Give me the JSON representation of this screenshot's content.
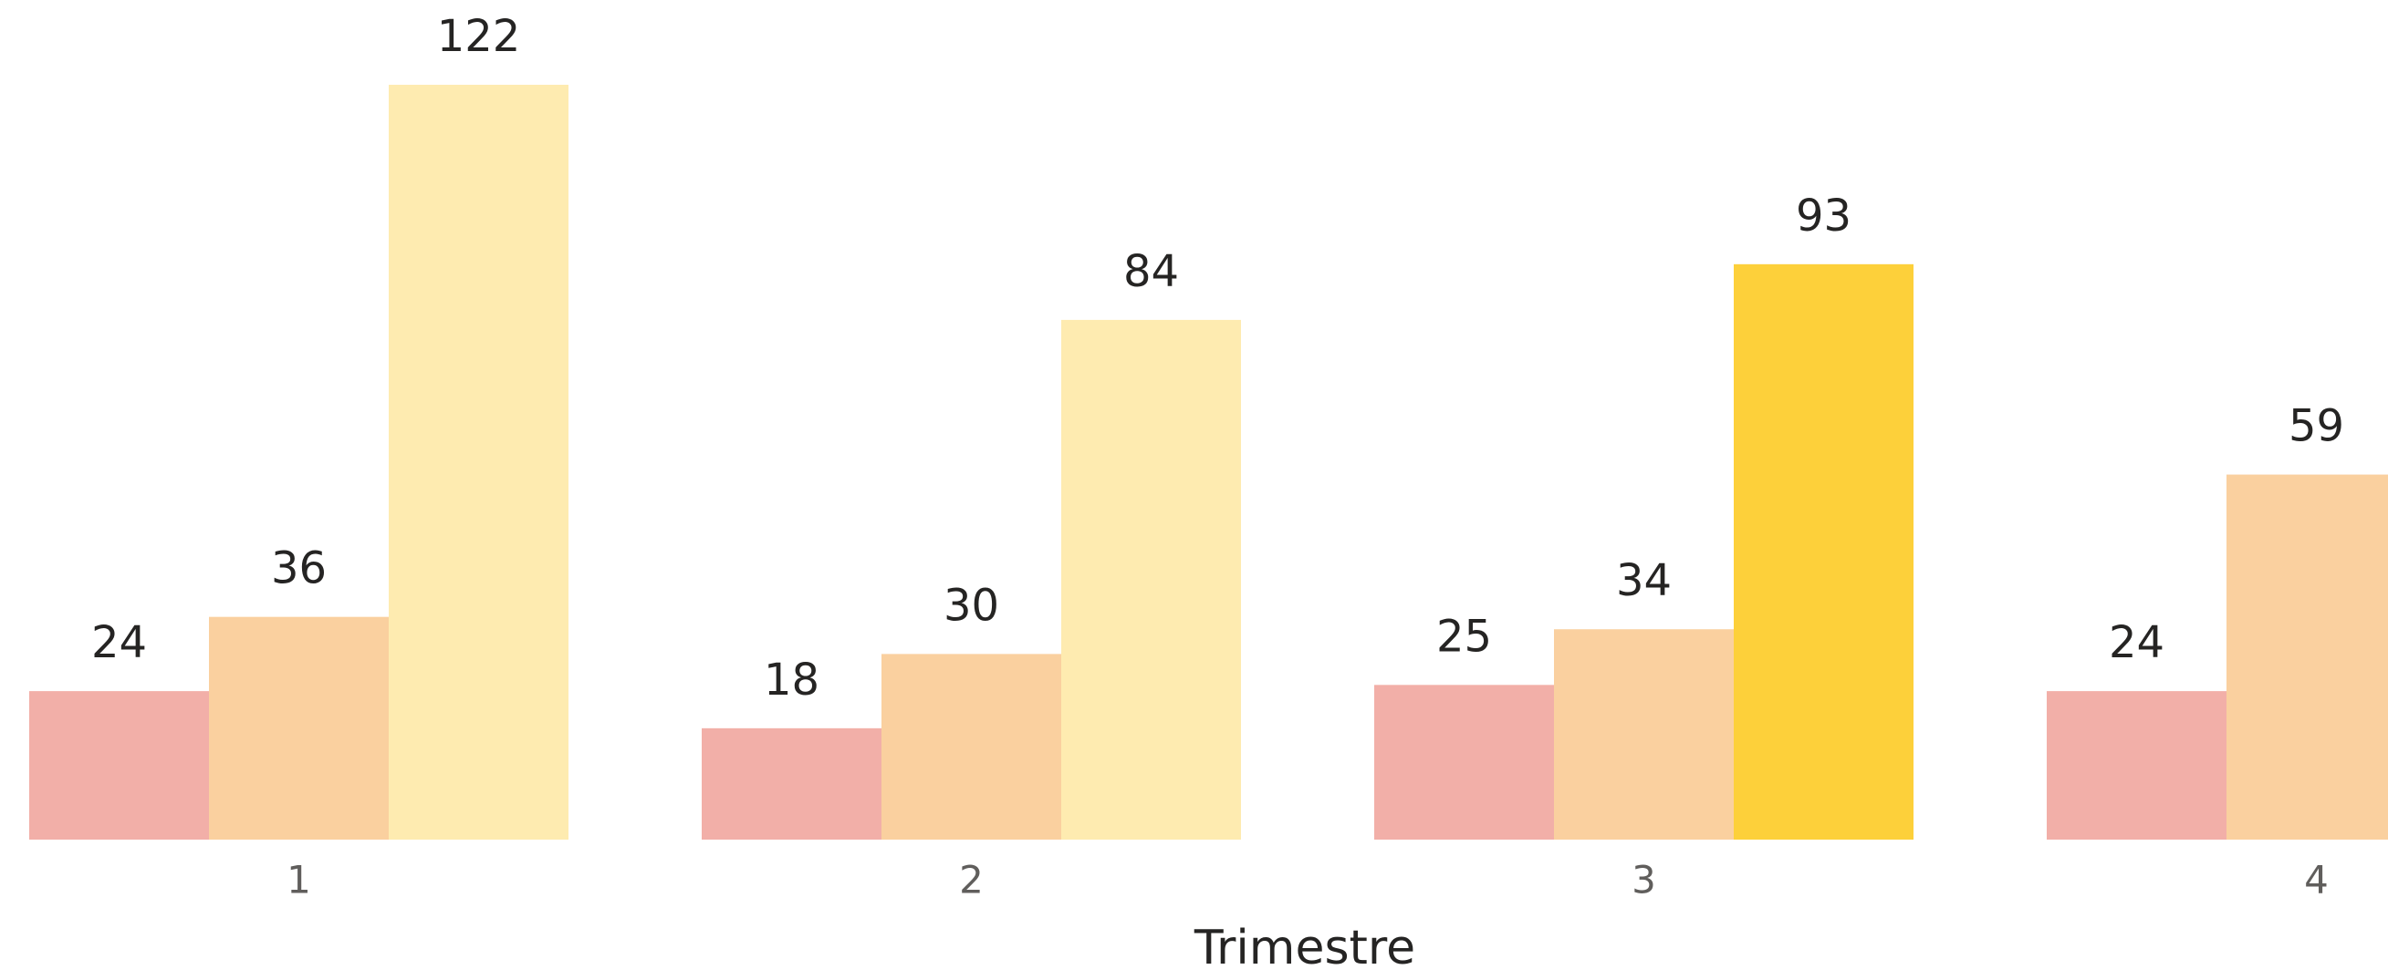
{
  "chart_data": {
    "type": "bar",
    "x_label": "Trimestre",
    "categories": [
      "1",
      "2",
      "3",
      "4"
    ],
    "series": [
      {
        "color": "#f2afa8",
        "values": [
          24,
          18,
          25,
          24
        ]
      },
      {
        "color": "#fad09f",
        "values": [
          36,
          30,
          34,
          59
        ]
      },
      {
        "color": "#feebb0",
        "colors": [
          "#feebb0",
          "#feebb0",
          "#fdd03a",
          null
        ],
        "values": [
          122,
          84,
          93,
          null
        ]
      }
    ]
  }
}
